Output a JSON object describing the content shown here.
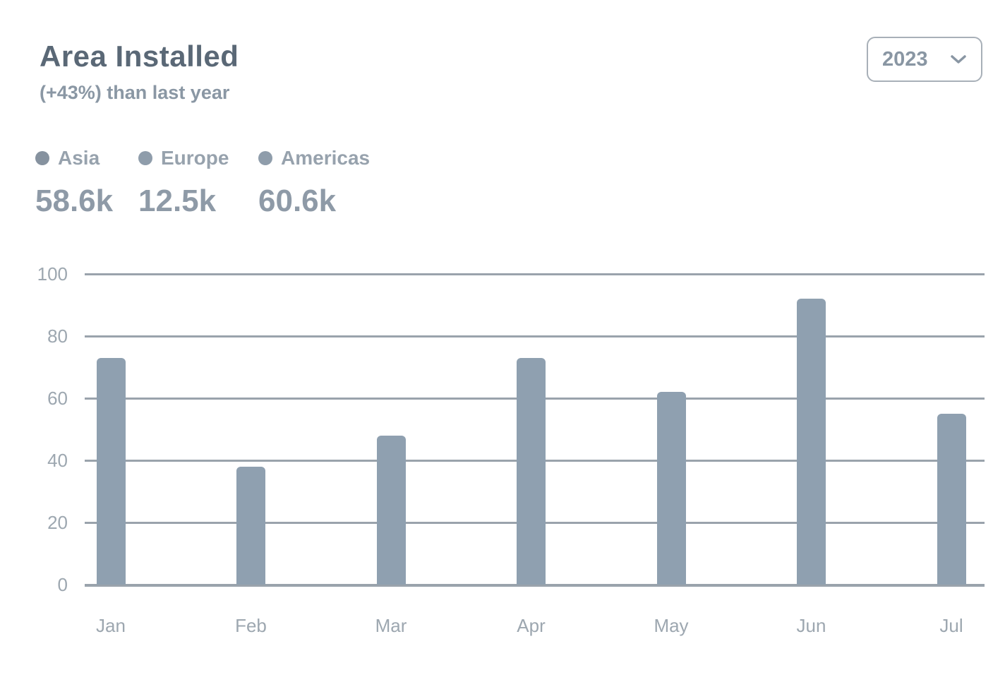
{
  "header": {
    "title": "Area Installed",
    "subtitle": "(+43%) than last year"
  },
  "year_select": {
    "value": "2023",
    "icon": "chevron-down-icon"
  },
  "legend": [
    {
      "label": "Asia",
      "total": "58.6k",
      "color": "#86929f"
    },
    {
      "label": "Europe",
      "total": "12.5k",
      "color": "#8f9dab"
    },
    {
      "label": "Americas",
      "total": "60.6k",
      "color": "#8f9dab"
    }
  ],
  "chart_data": {
    "type": "bar",
    "title": "Area Installed",
    "categories": [
      "Jan",
      "Feb",
      "Mar",
      "Apr",
      "May",
      "Jun",
      "Jul"
    ],
    "values": [
      73,
      38,
      48,
      73,
      62,
      92,
      55
    ],
    "series": [
      {
        "name": "Area installed",
        "values": [
          73,
          38,
          48,
          73,
          62,
          92,
          55
        ]
      }
    ],
    "xlabel": "",
    "ylabel": "",
    "ylim": [
      0,
      100
    ],
    "yticks": [
      0,
      20,
      40,
      60,
      80,
      100
    ],
    "grid": true,
    "legend_position": "top-left",
    "bar_color": "#8FA0B0",
    "grid_color": "#9aa3ac"
  },
  "colors": {
    "title": "#5a6876",
    "subtitle": "#8a97a4",
    "stat_value": "#8e9aa7",
    "axis_label": "#9da7b0",
    "background": "#ffffff"
  }
}
